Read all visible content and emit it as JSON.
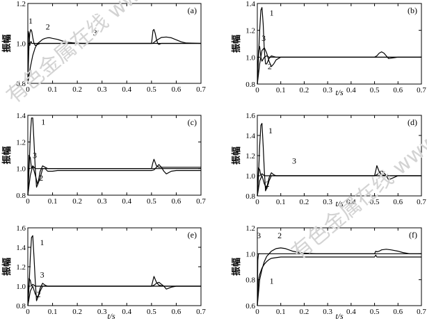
{
  "watermark": "有色金属在线 www.cnnmol.com",
  "chart_data": [
    {
      "type": "line",
      "panel": "(a)",
      "ylabel": "振幅",
      "xlabel": "",
      "xlim": [
        0,
        0.7
      ],
      "ylim": [
        0.8,
        1.2
      ],
      "xticks": [
        "0",
        "0.1",
        "0.2",
        "0.3",
        "0.4",
        "0.5",
        "0.6",
        "0.7"
      ],
      "yticks": [
        "0.8",
        "1.0",
        "1.2"
      ],
      "curve_labels": [
        {
          "text": "1",
          "x": 0.028,
          "y": 1.1
        },
        {
          "text": "2",
          "x": 0.092,
          "y": 1.07
        },
        {
          "text": "3",
          "x": 0.28,
          "y": 1.04
        }
      ],
      "series": [
        {
          "name": "1",
          "x": [
            0,
            0.004,
            0.008,
            0.012,
            0.016,
            0.02,
            0.025,
            0.03,
            0.04,
            0.05,
            0.06,
            0.08,
            0.1,
            0.12,
            0.16,
            0.2,
            0.7
          ],
          "y": [
            0.8,
            0.96,
            1.05,
            1.07,
            1.06,
            1.03,
            1.0,
            0.99,
            0.995,
            1.0,
            1.0,
            1.0,
            1.0,
            1.0,
            1.0,
            1.0,
            1.0
          ]
        },
        {
          "name": "2",
          "x": [
            0,
            0.01,
            0.02,
            0.03,
            0.04,
            0.05,
            0.06,
            0.07,
            0.08,
            0.09,
            0.1,
            0.12,
            0.14,
            0.16,
            0.18,
            0.2,
            0.22,
            0.25,
            0.5,
            0.505,
            0.52,
            0.54,
            0.56,
            0.58,
            0.6,
            0.62,
            0.64,
            0.7
          ],
          "y": [
            0.8,
            0.88,
            0.94,
            0.98,
            1.0,
            1.01,
            1.02,
            1.025,
            1.028,
            1.028,
            1.025,
            1.02,
            1.012,
            1.006,
            1.003,
            1.001,
            1.0,
            1.0,
            1.0,
            1.0,
            1.015,
            1.03,
            1.032,
            1.028,
            1.018,
            1.008,
            1.002,
            1.0
          ]
        },
        {
          "name": "3",
          "x": [
            0,
            0.002,
            0.005,
            0.008,
            0.01,
            0.013,
            0.016,
            0.02,
            0.03,
            0.5,
            0.503,
            0.506,
            0.51,
            0.515,
            0.52,
            0.525,
            0.53,
            0.54,
            0.55,
            0.7
          ],
          "y": [
            0.8,
            1.06,
            1.04,
            0.99,
            1.0,
            1.01,
            1.0,
            1.0,
            1.0,
            1.0,
            1.03,
            1.065,
            1.07,
            1.05,
            1.02,
            1.0,
            0.995,
            1.0,
            1.0,
            1.0
          ]
        }
      ]
    },
    {
      "type": "line",
      "panel": "(b)",
      "ylabel": "振幅",
      "xlabel": "t/s",
      "xlim": [
        0,
        0.7
      ],
      "ylim": [
        0.8,
        1.4
      ],
      "xticks": [
        "0",
        "0.1",
        "0.2",
        "0.3",
        "0.4",
        "0.5",
        "0.6",
        "0.7"
      ],
      "yticks": [
        "0.8",
        "1.0",
        "1.2",
        "1.4"
      ],
      "curve_labels": [
        {
          "text": "1",
          "x": 0.085,
          "y": 1.31
        },
        {
          "text": "3",
          "x": 0.045,
          "y": 1.12
        },
        {
          "text": "2",
          "x": 0.065,
          "y": 0.91
        }
      ],
      "series": [
        {
          "name": "1",
          "x": [
            0,
            0.005,
            0.01,
            0.015,
            0.02,
            0.025,
            0.03,
            0.035,
            0.04,
            0.05,
            0.06,
            0.07,
            0.08,
            0.1,
            0.12,
            0.15,
            0.7
          ],
          "y": [
            0.8,
            1.0,
            1.2,
            1.35,
            1.37,
            1.25,
            1.05,
            0.95,
            0.95,
            0.99,
            1.01,
            1.005,
            1.0,
            1.0,
            1.0,
            1.0,
            1.0
          ]
        },
        {
          "name": "2",
          "x": [
            0,
            0.01,
            0.02,
            0.03,
            0.04,
            0.05,
            0.06,
            0.07,
            0.08,
            0.1,
            0.12,
            0.15,
            0.18,
            0.5,
            0.51,
            0.52,
            0.53,
            0.54,
            0.55,
            0.56,
            0.58,
            0.6,
            0.7
          ],
          "y": [
            0.8,
            0.95,
            1.05,
            1.07,
            1.03,
            0.97,
            0.93,
            0.95,
            0.98,
            1.0,
            1.0,
            1.0,
            1.0,
            1.0,
            1.01,
            1.03,
            1.04,
            1.03,
            1.01,
            0.99,
            0.995,
            1.0,
            1.0
          ]
        },
        {
          "name": "3",
          "x": [
            0,
            0.005,
            0.01,
            0.015,
            0.02,
            0.03,
            0.04,
            0.05,
            0.06,
            0.07,
            0.08,
            0.1,
            0.7
          ],
          "y": [
            0.8,
            1.05,
            1.08,
            1.0,
            0.97,
            1.0,
            1.01,
            1.0,
            1.0,
            1.0,
            1.0,
            1.0,
            1.0
          ]
        }
      ]
    },
    {
      "type": "line",
      "panel": "(c)",
      "ylabel": "振幅",
      "xlabel": "",
      "xlim": [
        0,
        0.7
      ],
      "ylim": [
        0.8,
        1.4
      ],
      "xticks": [
        "0",
        "0.1",
        "0.2",
        "0.3",
        "0.4",
        "0.5",
        "0.6",
        "0.7"
      ],
      "yticks": [
        "0.8",
        "1.0",
        "1.2",
        "1.4"
      ],
      "curve_labels": [
        {
          "text": "1",
          "x": 0.085,
          "y": 1.33
        },
        {
          "text": "3",
          "x": 0.045,
          "y": 1.08
        },
        {
          "text": "2",
          "x": 0.065,
          "y": 0.91
        }
      ],
      "series": [
        {
          "name": "1",
          "x": [
            0,
            0.005,
            0.01,
            0.015,
            0.02,
            0.025,
            0.03,
            0.035,
            0.04,
            0.05,
            0.06,
            0.07,
            0.08,
            0.1,
            0.12,
            0.15,
            0.7
          ],
          "y": [
            0.8,
            1.0,
            1.25,
            1.38,
            1.38,
            1.2,
            1.0,
            0.86,
            0.88,
            0.98,
            1.02,
            1.01,
            1.0,
            1.0,
            1.0,
            1.0,
            1.0
          ]
        },
        {
          "name": "2",
          "x": [
            0,
            0.01,
            0.02,
            0.03,
            0.04,
            0.05,
            0.06,
            0.07,
            0.08,
            0.1,
            0.12,
            0.15,
            0.2,
            0.5,
            0.51,
            0.52,
            0.53,
            0.54,
            0.55,
            0.56,
            0.58,
            0.6,
            0.7
          ],
          "y": [
            0.8,
            0.95,
            1.02,
            0.95,
            0.88,
            0.93,
            1.0,
            1.0,
            0.98,
            0.98,
            0.985,
            0.985,
            0.985,
            0.985,
            0.99,
            1.01,
            1.03,
            1.01,
            0.98,
            0.96,
            0.98,
            0.985,
            0.985
          ]
        },
        {
          "name": "3",
          "x": [
            0,
            0.005,
            0.01,
            0.015,
            0.02,
            0.03,
            0.04,
            0.05,
            0.06,
            0.08,
            0.1,
            0.5,
            0.505,
            0.51,
            0.52,
            0.53,
            0.55,
            0.6,
            0.7
          ],
          "y": [
            0.8,
            1.1,
            1.08,
            1.0,
            1.02,
            1.0,
            1.0,
            1.0,
            1.0,
            1.0,
            1.0,
            1.0,
            1.04,
            1.07,
            1.02,
            1.01,
            1.01,
            1.01,
            1.01
          ]
        }
      ]
    },
    {
      "type": "line",
      "panel": "(d)",
      "ylabel": "振幅",
      "xlabel": "t/s",
      "xlim": [
        0,
        0.7
      ],
      "ylim": [
        0.8,
        1.6
      ],
      "xticks": [
        "0",
        "0.1",
        "0.2",
        "0.3",
        "0.4",
        "0.5",
        "0.6",
        "0.7"
      ],
      "yticks": [
        "0.8",
        "1.0",
        "1.2",
        "1.4",
        "1.6"
      ],
      "curve_labels": [
        {
          "text": "1",
          "x": 0.08,
          "y": 1.42
        },
        {
          "text": "3",
          "x": 0.175,
          "y": 1.12
        },
        {
          "text": "2",
          "x": 0.055,
          "y": 0.89
        }
      ],
      "series": [
        {
          "name": "1",
          "x": [
            0,
            0.005,
            0.01,
            0.015,
            0.02,
            0.025,
            0.03,
            0.035,
            0.04,
            0.05,
            0.06,
            0.07,
            0.08,
            0.1,
            0.12,
            0.15,
            0.7
          ],
          "y": [
            0.8,
            1.0,
            1.3,
            1.5,
            1.52,
            1.3,
            1.05,
            0.85,
            0.88,
            0.98,
            1.03,
            1.01,
            1.0,
            1.0,
            1.0,
            1.0,
            1.0
          ]
        },
        {
          "name": "2",
          "x": [
            0,
            0.01,
            0.02,
            0.03,
            0.04,
            0.05,
            0.06,
            0.07,
            0.08,
            0.1,
            0.12,
            0.15,
            0.5,
            0.51,
            0.52,
            0.53,
            0.54,
            0.55,
            0.56,
            0.58,
            0.6,
            0.7
          ],
          "y": [
            0.8,
            0.95,
            1.0,
            0.92,
            0.87,
            0.95,
            1.0,
            1.0,
            1.0,
            1.0,
            1.0,
            1.0,
            1.0,
            1.01,
            1.03,
            1.05,
            1.03,
            1.0,
            0.96,
            0.98,
            1.0,
            1.0
          ]
        },
        {
          "name": "3",
          "x": [
            0,
            0.005,
            0.01,
            0.015,
            0.02,
            0.03,
            0.04,
            0.05,
            0.06,
            0.08,
            0.1,
            0.5,
            0.505,
            0.51,
            0.52,
            0.53,
            0.55,
            0.6,
            0.7
          ],
          "y": [
            0.8,
            1.08,
            1.06,
            1.0,
            1.02,
            1.0,
            1.0,
            1.0,
            1.0,
            1.0,
            1.0,
            1.0,
            1.05,
            1.1,
            1.04,
            1.01,
            1.0,
            1.0,
            1.0
          ]
        }
      ]
    },
    {
      "type": "line",
      "panel": "(e)",
      "ylabel": "振幅",
      "xlabel": "t/s",
      "xlim": [
        0,
        0.7
      ],
      "ylim": [
        0.8,
        1.6
      ],
      "xticks": [
        "0",
        "0.1",
        "0.2",
        "0.3",
        "0.4",
        "0.5",
        "0.6",
        "0.7"
      ],
      "yticks": [
        "0.8",
        "1.0",
        "1.2",
        "1.4",
        "1.6"
      ],
      "curve_labels": [
        {
          "text": "1",
          "x": 0.08,
          "y": 1.42
        },
        {
          "text": "3",
          "x": 0.075,
          "y": 1.09
        },
        {
          "text": "2",
          "x": 0.055,
          "y": 0.89
        }
      ],
      "series": [
        {
          "name": "1",
          "x": [
            0,
            0.005,
            0.01,
            0.015,
            0.02,
            0.025,
            0.03,
            0.035,
            0.04,
            0.05,
            0.06,
            0.07,
            0.08,
            0.1,
            0.12,
            0.15,
            0.7
          ],
          "y": [
            0.8,
            1.0,
            1.3,
            1.5,
            1.52,
            1.3,
            1.05,
            0.85,
            0.88,
            0.98,
            1.03,
            1.01,
            1.0,
            1.0,
            1.0,
            1.0,
            1.0
          ]
        },
        {
          "name": "2",
          "x": [
            0,
            0.01,
            0.02,
            0.03,
            0.04,
            0.05,
            0.06,
            0.07,
            0.08,
            0.1,
            0.12,
            0.15,
            0.5,
            0.51,
            0.52,
            0.53,
            0.54,
            0.55,
            0.56,
            0.58,
            0.6,
            0.7
          ],
          "y": [
            0.8,
            0.95,
            1.0,
            0.92,
            0.88,
            0.95,
            1.0,
            1.0,
            1.0,
            1.0,
            1.0,
            1.0,
            1.0,
            1.01,
            1.03,
            1.04,
            1.02,
            1.0,
            0.97,
            0.99,
            1.0,
            1.0
          ]
        },
        {
          "name": "3",
          "x": [
            0,
            0.005,
            0.01,
            0.015,
            0.02,
            0.03,
            0.04,
            0.05,
            0.06,
            0.08,
            0.1,
            0.5,
            0.505,
            0.51,
            0.52,
            0.53,
            0.55,
            0.6,
            0.7
          ],
          "y": [
            0.8,
            1.08,
            1.06,
            1.0,
            1.02,
            1.0,
            1.0,
            1.0,
            1.0,
            1.0,
            1.0,
            1.0,
            1.05,
            1.1,
            1.04,
            1.01,
            1.0,
            1.0,
            1.0
          ]
        }
      ]
    },
    {
      "type": "line",
      "panel": "(f)",
      "ylabel": "振幅",
      "xlabel": "t/s",
      "xlim": [
        0,
        0.7
      ],
      "ylim": [
        0.6,
        1.2
      ],
      "xticks": [
        "0",
        "0.1",
        "0.2",
        "0.3",
        "0.4",
        "0.5",
        "0.6",
        "0.7"
      ],
      "yticks": [
        "0.6",
        "0.8",
        "1.0",
        "1.2"
      ],
      "curve_labels": [
        {
          "text": "3",
          "x": 0.018,
          "y": 1.12
        },
        {
          "text": "2",
          "x": 0.107,
          "y": 1.12
        },
        {
          "text": "1",
          "x": 0.085,
          "y": 0.77
        }
      ],
      "series": [
        {
          "name": "1",
          "x": [
            0,
            0.005,
            0.01,
            0.02,
            0.03,
            0.04,
            0.05,
            0.06,
            0.08,
            0.1,
            0.12,
            0.15,
            0.2,
            0.5,
            0.505,
            0.51,
            0.52,
            0.7
          ],
          "y": [
            0.6,
            0.8,
            0.84,
            0.89,
            0.92,
            0.94,
            0.955,
            0.965,
            0.97,
            0.975,
            0.975,
            0.975,
            0.975,
            0.975,
            0.99,
            0.975,
            0.975,
            0.975
          ]
        },
        {
          "name": "2",
          "x": [
            0,
            0.01,
            0.02,
            0.03,
            0.04,
            0.05,
            0.06,
            0.07,
            0.08,
            0.1,
            0.12,
            0.15,
            0.18,
            0.2,
            0.25,
            0.5,
            0.505,
            0.51,
            0.52,
            0.53,
            0.55,
            0.57,
            0.6,
            0.62,
            0.65,
            0.7
          ],
          "y": [
            0.6,
            0.8,
            0.88,
            0.94,
            0.98,
            1.0,
            1.02,
            1.03,
            1.04,
            1.045,
            1.04,
            1.02,
            1.01,
            1.005,
            1.0,
            1.0,
            1.02,
            1.015,
            1.02,
            1.03,
            1.035,
            1.03,
            1.02,
            1.01,
            1.0,
            1.0
          ]
        },
        {
          "name": "3",
          "x": [
            0,
            0.002,
            0.005,
            0.008,
            0.7
          ],
          "y": [
            0.6,
            0.95,
            1.0,
            1.0,
            1.0
          ]
        }
      ]
    }
  ]
}
